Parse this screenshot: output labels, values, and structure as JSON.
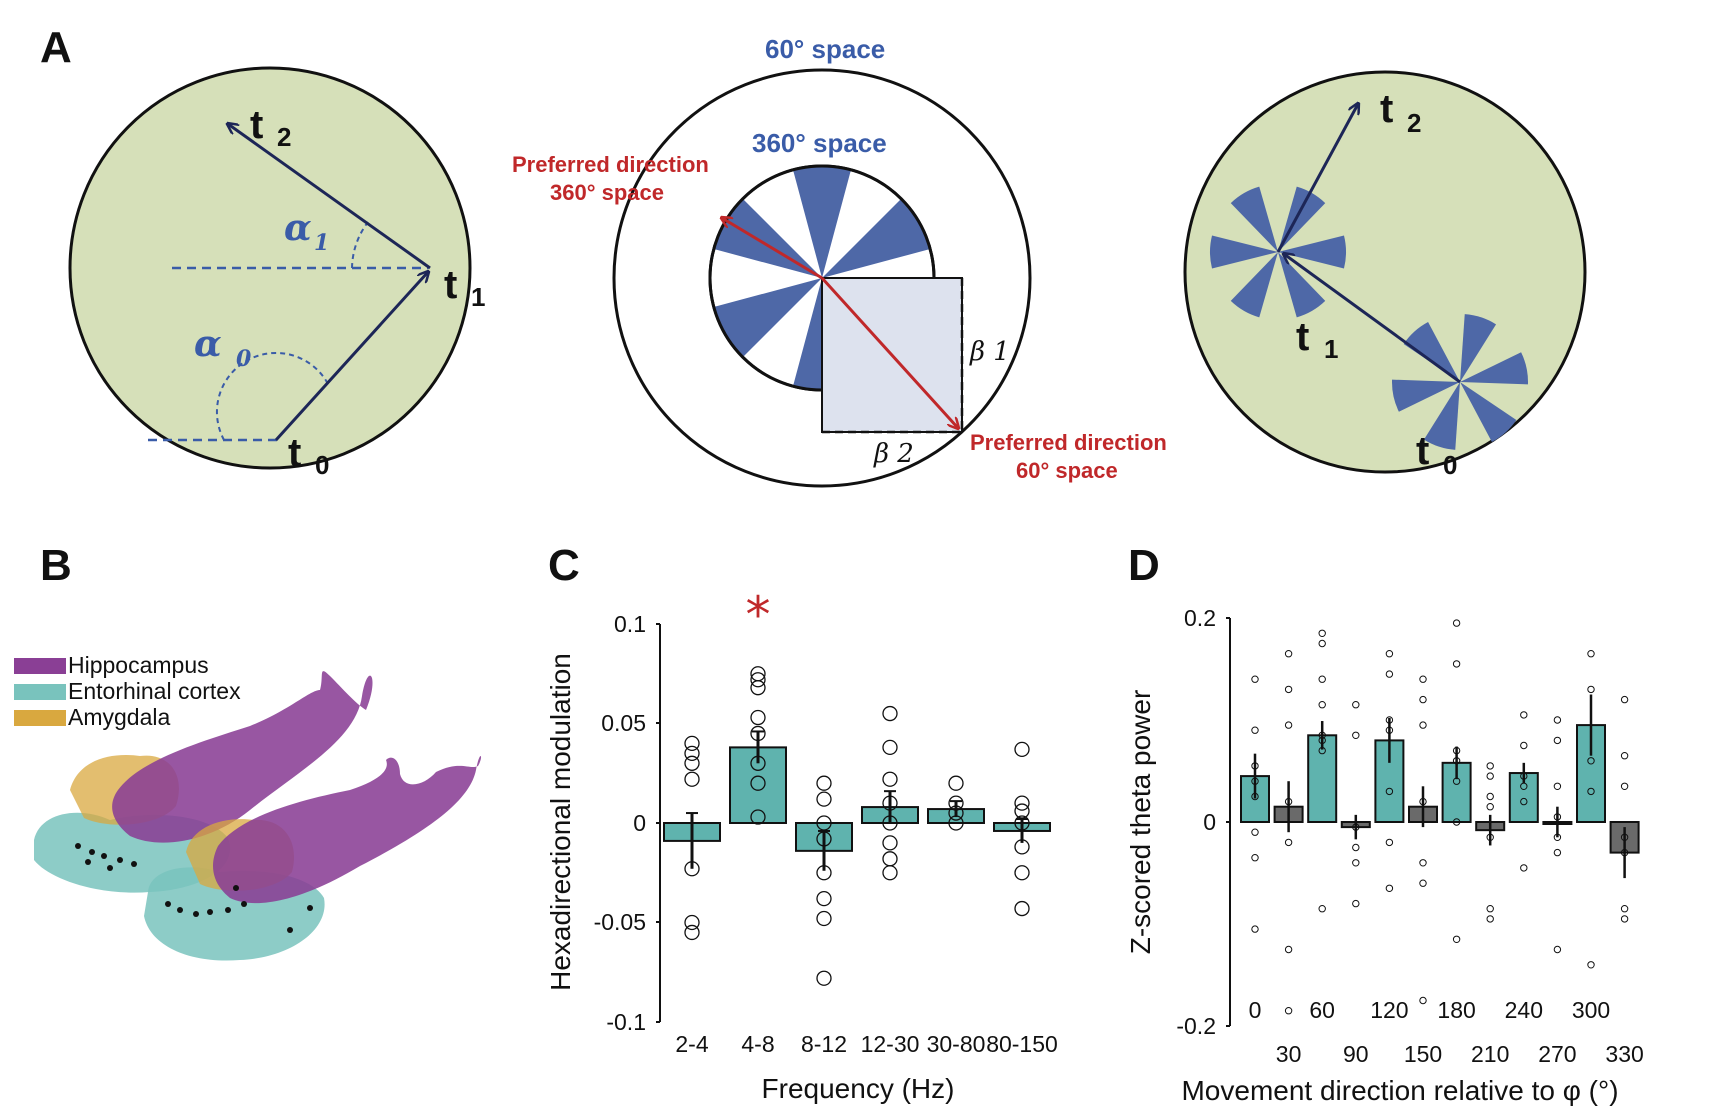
{
  "panels": {
    "a": "A",
    "b": "B",
    "c": "C",
    "d": "D"
  },
  "panel_a": {
    "left": {
      "t2": "t",
      "t2_sub": "2",
      "t1": "t",
      "t1_sub": "1",
      "t0": "t",
      "t0_sub": "0",
      "alpha1": "α",
      "alpha1_sub": "1",
      "alpha0": "α",
      "alpha0_sub": "0"
    },
    "middle": {
      "outer_space": "60°  space",
      "inner_space": "360°  space",
      "pref360_line1": "Preferred direction",
      "pref360_line2": "360°  space",
      "pref60_line1": "Preferred direction",
      "pref60_line2": "60°  space",
      "beta1": "β 1",
      "beta2": "β 2"
    },
    "right": {
      "t2": "t",
      "t2_sub": "2",
      "t1": "t",
      "t1_sub": "1",
      "t0": "t",
      "t0_sub": "0"
    },
    "colors": {
      "arena": "#d6e0b9",
      "wedge": "#4e68a7",
      "red": "#c0282a",
      "navy": "#1d2657"
    }
  },
  "panel_b": {
    "legend": [
      {
        "label": "Hippocampus",
        "color": "#8a3f95"
      },
      {
        "label": "Entorhinal cortex",
        "color": "#79c3bd"
      },
      {
        "label": "Amygdala",
        "color": "#d9a83f"
      }
    ]
  },
  "chart_data": [
    {
      "type": "bar",
      "panel": "C",
      "title": "",
      "xlabel": "Frequency  (Hz)",
      "ylabel": "Hexadirectional modulation",
      "ylim": [
        -0.1,
        0.1
      ],
      "yticks": [
        "0.1",
        "0.05",
        "0",
        "-0.05",
        "-0.1"
      ],
      "categories": [
        "2-4",
        "4-8",
        "8-12",
        "12-30",
        "30-80",
        "80-150"
      ],
      "values": [
        -0.009,
        0.038,
        -0.014,
        0.008,
        0.007,
        -0.004
      ],
      "errors": [
        0.014,
        0.008,
        0.01,
        0.008,
        0.004,
        0.006
      ],
      "points": [
        [
          0.04,
          0.035,
          0.03,
          0.022,
          -0.023,
          -0.05,
          -0.055
        ],
        [
          0.075,
          0.072,
          0.068,
          0.053,
          0.045,
          0.03,
          0.02,
          0.003
        ],
        [
          0.02,
          0.012,
          0.0,
          -0.008,
          -0.025,
          -0.038,
          -0.048,
          -0.078
        ],
        [
          0.055,
          0.038,
          0.022,
          0.01,
          0.0,
          -0.01,
          -0.018,
          -0.025
        ],
        [
          0.02,
          0.01,
          0.005,
          0.0
        ],
        [
          0.037,
          0.01,
          0.006,
          0.0,
          -0.012,
          -0.025,
          -0.043
        ]
      ],
      "significance": {
        "category": "4-8",
        "mark": "*",
        "color": "#c0282a"
      },
      "bar_color": "#5fb3ae"
    },
    {
      "type": "bar",
      "panel": "D",
      "title": "",
      "xlabel": "Movement direction relative to φ  (°)",
      "ylabel": "Z-scored theta power",
      "ylim": [
        -0.2,
        0.2
      ],
      "yticks": [
        "0.2",
        "0",
        "-0.2"
      ],
      "categories": [
        "0",
        "30",
        "60",
        "90",
        "120",
        "150",
        "180",
        "210",
        "240",
        "270",
        "300",
        "330"
      ],
      "top_labels": [
        "0",
        "60",
        "120",
        "180",
        "240",
        "300"
      ],
      "bottom_labels": [
        "30",
        "90",
        "150",
        "210",
        "270",
        "330"
      ],
      "values": [
        0.045,
        0.015,
        0.085,
        -0.005,
        0.08,
        0.015,
        0.058,
        -0.008,
        0.048,
        0.0,
        0.095,
        -0.03
      ],
      "errors": [
        0.022,
        0.025,
        0.014,
        0.012,
        0.022,
        0.02,
        0.016,
        0.015,
        0.01,
        0.015,
        0.03,
        0.025
      ],
      "groups": [
        "aligned",
        "misaligned",
        "aligned",
        "misaligned",
        "aligned",
        "misaligned",
        "aligned",
        "misaligned",
        "aligned",
        "misaligned",
        "aligned",
        "misaligned"
      ],
      "points": [
        [
          0.14,
          0.09,
          0.055,
          0.04,
          0.025,
          -0.01,
          -0.035,
          -0.105
        ],
        [
          0.165,
          0.13,
          0.095,
          0.02,
          -0.02,
          -0.125,
          -0.185
        ],
        [
          0.185,
          0.175,
          0.14,
          0.115,
          0.085,
          0.08,
          0.07,
          -0.085
        ],
        [
          0.115,
          0.085,
          -0.005,
          -0.025,
          -0.04,
          -0.08
        ],
        [
          0.165,
          0.145,
          0.1,
          0.09,
          0.03,
          -0.02,
          -0.065
        ],
        [
          0.14,
          0.12,
          0.095,
          0.02,
          -0.04,
          -0.06,
          -0.175
        ],
        [
          0.195,
          0.155,
          0.07,
          0.06,
          0.04,
          0.0,
          -0.115
        ],
        [
          0.055,
          0.045,
          0.025,
          0.015,
          -0.015,
          -0.085,
          -0.095
        ],
        [
          0.105,
          0.075,
          0.045,
          0.035,
          0.02,
          -0.045
        ],
        [
          0.1,
          0.08,
          0.035,
          0.005,
          -0.015,
          -0.03,
          -0.125
        ],
        [
          0.165,
          0.13,
          0.06,
          0.03,
          -0.14
        ],
        [
          0.12,
          0.065,
          0.035,
          -0.015,
          -0.03,
          -0.085,
          -0.095
        ]
      ],
      "colors": {
        "aligned": "#5fb3ae",
        "misaligned": "#6a6a6a"
      }
    }
  ]
}
